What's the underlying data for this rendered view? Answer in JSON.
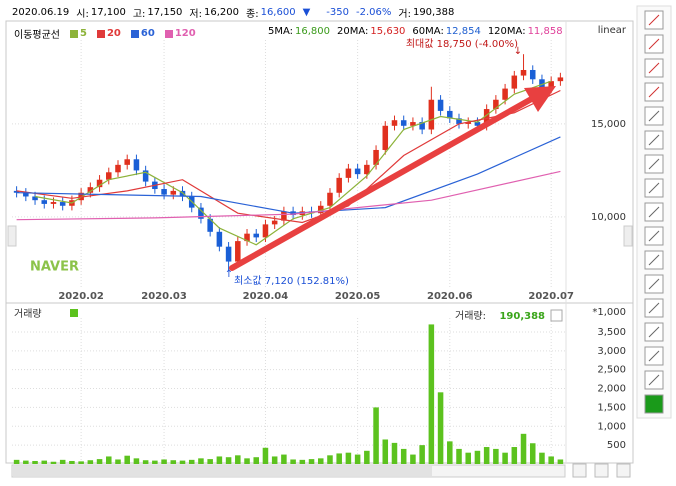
{
  "header": {
    "date": "2020.06.19",
    "items": [
      {
        "label": "시:",
        "value": "17,100"
      },
      {
        "label": "고:",
        "value": "17,150"
      },
      {
        "label": "저:",
        "value": "16,200"
      },
      {
        "label": "종:",
        "value": "16,600"
      }
    ],
    "change_arrow": "▼",
    "change": "-350",
    "change_pct": "-2.06%",
    "volume_label": "거:",
    "volume": "190,388"
  },
  "ma_readout": [
    {
      "label": "5MA:",
      "value": "16,800",
      "color": "#3a9a1a"
    },
    {
      "label": "20MA:",
      "value": "15,630",
      "color": "#d42020"
    },
    {
      "label": "60MA:",
      "value": "12,854",
      "color": "#1f5fd0"
    },
    {
      "label": "120MA:",
      "value": "11,858",
      "color": "#e0409a"
    }
  ],
  "chart_data": [
    {
      "type": "candlestick",
      "legend_title": "이동평균선",
      "scale_label": "linear",
      "watermark": "NAVER",
      "max_label": "최대값 18,750 (-4.00%)",
      "min_label": "최소값 7,120 (152.81%)",
      "up_color": "#e0301e",
      "down_color": "#1a5fd6",
      "grid": true,
      "categories": [
        null,
        null,
        null,
        null,
        null,
        null,
        null,
        "2020.02",
        null,
        null,
        null,
        null,
        null,
        null,
        null,
        null,
        "2020.03",
        null,
        null,
        null,
        null,
        null,
        null,
        null,
        null,
        null,
        null,
        "2020.04",
        null,
        null,
        null,
        null,
        null,
        null,
        null,
        null,
        null,
        "2020.05",
        null,
        null,
        null,
        null,
        null,
        null,
        null,
        null,
        null,
        "2020.06",
        null,
        null,
        null,
        null,
        null,
        null,
        null,
        null,
        null,
        null,
        "2020.07",
        null
      ],
      "open": [
        11400,
        11300,
        11100,
        10900,
        10700,
        10800,
        10600,
        10900,
        11300,
        11600,
        12000,
        12400,
        12800,
        13100,
        12500,
        11900,
        11500,
        11200,
        11400,
        11100,
        10500,
        9900,
        9200,
        8400,
        7600,
        8700,
        9100,
        8900,
        9600,
        9800,
        10300,
        10100,
        10300,
        10200,
        10600,
        11300,
        12100,
        12600,
        12300,
        12800,
        13600,
        14900,
        15200,
        14900,
        15100,
        14700,
        16300,
        15700,
        15300,
        15000,
        15100,
        14900,
        15800,
        16300,
        16900,
        17600,
        17900,
        17400,
        16900,
        17300
      ],
      "high": [
        11650,
        11550,
        11350,
        11150,
        11050,
        11050,
        11150,
        11550,
        11850,
        12250,
        12650,
        13050,
        13350,
        13350,
        12750,
        12150,
        11750,
        11650,
        11650,
        11350,
        10750,
        10150,
        9450,
        8650,
        8950,
        9350,
        9350,
        9850,
        10050,
        10550,
        10550,
        10550,
        10550,
        10850,
        11550,
        12350,
        12850,
        12850,
        13050,
        13850,
        15150,
        15450,
        15450,
        15350,
        15350,
        17000,
        16550,
        15950,
        15550,
        15350,
        15350,
        16050,
        16550,
        17150,
        17850,
        18750,
        18150,
        17650,
        17550,
        17750
      ],
      "low": [
        11050,
        10850,
        10650,
        10450,
        10450,
        10350,
        10350,
        10650,
        11050,
        11350,
        11750,
        12150,
        12550,
        12250,
        11650,
        11250,
        10950,
        10950,
        10850,
        10250,
        9650,
        8950,
        8150,
        7120,
        7350,
        8450,
        8650,
        8650,
        9350,
        9550,
        9850,
        9850,
        9950,
        9950,
        10350,
        11050,
        11850,
        12050,
        12050,
        12550,
        13350,
        14650,
        14650,
        14650,
        14450,
        14450,
        15450,
        15050,
        14750,
        14750,
        14650,
        14650,
        15550,
        16050,
        16650,
        17350,
        17150,
        16650,
        16650,
        17050
      ],
      "close": [
        11300,
        11100,
        10900,
        10700,
        10800,
        10600,
        10900,
        11300,
        11600,
        12000,
        12400,
        12800,
        13100,
        12500,
        11900,
        11500,
        11200,
        11400,
        11100,
        10500,
        9900,
        9200,
        8400,
        7600,
        8700,
        9100,
        8900,
        9600,
        9800,
        10300,
        10100,
        10300,
        10200,
        10600,
        11300,
        12100,
        12600,
        12300,
        12800,
        13600,
        14900,
        15200,
        14900,
        15100,
        14700,
        16300,
        15700,
        15300,
        15000,
        15100,
        14900,
        15800,
        16300,
        16900,
        17600,
        17900,
        17400,
        16900,
        17300,
        17500
      ],
      "lines": [
        {
          "name": "5",
          "color": "#8db33a",
          "x": [
            2,
            6,
            10,
            14,
            18,
            22,
            26,
            30,
            34,
            38,
            42,
            46,
            50,
            54,
            58
          ],
          "values": [
            11100,
            10750,
            12000,
            12400,
            11300,
            9400,
            8500,
            9900,
            10500,
            12200,
            14700,
            15400,
            15100,
            16600,
            17300
          ]
        },
        {
          "name": "20",
          "color": "#e03a3a",
          "x": [
            0,
            6,
            12,
            18,
            24,
            31,
            36,
            42,
            48,
            54,
            59
          ],
          "values": [
            11400,
            11000,
            11400,
            12000,
            10200,
            9700,
            10600,
            13300,
            15000,
            15600,
            16800
          ]
        },
        {
          "name": "60",
          "color": "#2a62d6",
          "x": [
            0,
            10,
            20,
            30,
            40,
            50,
            59
          ],
          "values": [
            11300,
            11200,
            11100,
            10200,
            10500,
            12300,
            14300
          ]
        },
        {
          "name": "120",
          "color": "#e060b0",
          "x": [
            0,
            15,
            30,
            45,
            59
          ],
          "values": [
            9850,
            9950,
            10150,
            10900,
            12450
          ]
        }
      ],
      "ylim": [
        6340,
        19620
      ],
      "yticks": [
        {
          "value": 10000,
          "label": "10,000"
        },
        {
          "value": 15000,
          "label": "15,000"
        }
      ]
    },
    {
      "type": "bar",
      "title": "거래량",
      "color": "#5cc21e",
      "unit_label": "*1,000",
      "readout_label": "거래량:",
      "readout_value": "190,388",
      "grid": true,
      "values": [
        110,
        90,
        80,
        90,
        60,
        110,
        80,
        70,
        100,
        130,
        200,
        120,
        220,
        150,
        100,
        90,
        120,
        100,
        90,
        110,
        150,
        130,
        200,
        180,
        230,
        150,
        180,
        430,
        200,
        250,
        120,
        110,
        130,
        150,
        230,
        280,
        300,
        250,
        350,
        1500,
        650,
        560,
        400,
        250,
        500,
        3700,
        1900,
        600,
        400,
        300,
        350,
        450,
        400,
        300,
        450,
        800,
        550,
        300,
        200,
        120
      ],
      "ylim": [
        0,
        3870
      ],
      "yticks": [
        500,
        {
          "value": 1000,
          "label": "1,000"
        },
        {
          "value": 1500,
          "label": "1,500"
        },
        {
          "value": 2000,
          "label": "2,000"
        },
        {
          "value": 2500,
          "label": "2,500"
        },
        {
          "value": 3000,
          "label": "3,000"
        },
        {
          "value": 3500,
          "label": "3,500"
        }
      ]
    }
  ]
}
